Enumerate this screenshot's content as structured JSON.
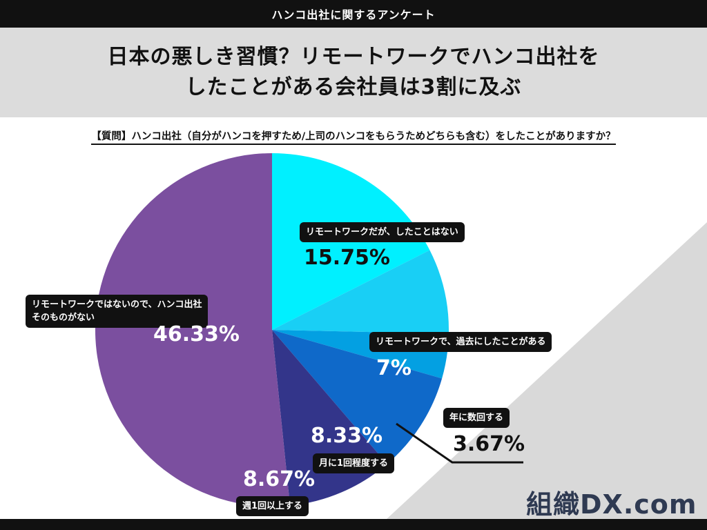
{
  "header": {
    "top_label": "ハンコ出社に関するアンケート",
    "title_line1": "日本の悪しき習慣？リモートワークでハンコ出社を",
    "title_line2": "したことがある会社員は3割に及ぶ",
    "question": "【質問】ハンコ出社（自分がハンコを押すため/上司のハンコをもらうためどちらも含む）をしたことがありますか？"
  },
  "chart_data": {
    "type": "pie",
    "title": "日本の悪しき習慣？リモートワークでハンコ出社をしたことがある会社員は3割に及ぶ",
    "start_angle": "12 o'clock",
    "direction": "clockwise",
    "slices": [
      {
        "label": "リモートワークだが、したことはない",
        "value": 15.75,
        "display": "15.75%",
        "color": "#00f0ff"
      },
      {
        "label": "リモートワークで、過去にしたことがある",
        "value": 7,
        "display": "7%",
        "color": "#19cff5"
      },
      {
        "label": "年に数回する",
        "value": 3.67,
        "display": "3.67%",
        "color": "#03a0e2"
      },
      {
        "label": "月に1回程度する",
        "value": 8.33,
        "display": "8.33%",
        "color": "#0f69c9"
      },
      {
        "label": "週1回以上する",
        "value": 8.67,
        "display": "8.67%",
        "color": "#33358a"
      },
      {
        "label": "リモートワークではないので、ハンコ出社そのものがない",
        "label_line1": "リモートワークではないので、ハンコ出社",
        "label_line2": "そのものがない",
        "value": 46.33,
        "display": "46.33%",
        "color": "#7b4f9f"
      }
    ]
  },
  "logo": {
    "text": "組織DX.com",
    "color": "#2f3a52"
  },
  "colors": {
    "background": "#ffffff",
    "title_band": "#dcdcdc",
    "top_bar": "#111111",
    "corner_triangle": "#d9d9d9"
  }
}
